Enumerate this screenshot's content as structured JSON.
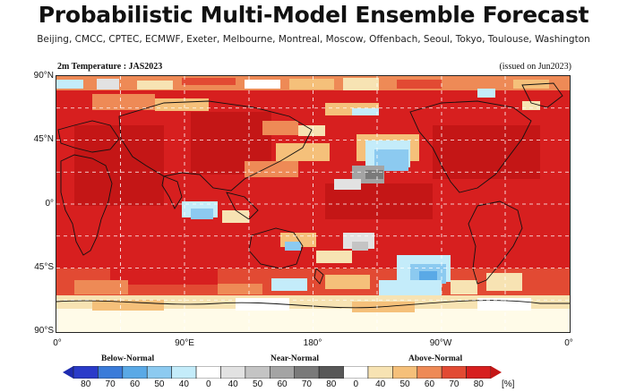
{
  "header": {
    "title": "Probabilistic Multi-Model Ensemble Forecast",
    "subtitle": "Beijing, CMCC, CPTEC, ECMWF, Exeter, Melbourne, Montreal, Moscow, Offenbach, Seoul, Tokyo, Toulouse, Washington"
  },
  "map": {
    "variable_label": "2m Temperature : JAS2023",
    "issued_label": "(issued on Jun2023)",
    "lat_ticks": [
      "90°N",
      "45°N",
      "0°",
      "45°S",
      "90°S"
    ],
    "lon_ticks": [
      "0°",
      "90°E",
      "180°",
      "90°W",
      "0°"
    ]
  },
  "legend": {
    "categories": [
      "Below-Normal",
      "Near-Normal",
      "Above-Normal"
    ],
    "below_values": [
      "80",
      "70",
      "60",
      "50",
      "40"
    ],
    "near_values": [
      "0",
      "40",
      "50",
      "60",
      "70",
      "80"
    ],
    "above_values": [
      "0",
      "40",
      "50",
      "60",
      "70",
      "80"
    ],
    "unit": "[%]",
    "below_colors": [
      "#2a3bc9",
      "#3a7bd9",
      "#5aa9e6",
      "#8ccaf0",
      "#c4ecfa"
    ],
    "near_colors": [
      "#ffffff",
      "#e2e2e2",
      "#c4c4c4",
      "#a4a4a4",
      "#7a7a7a",
      "#585858"
    ],
    "above_colors": [
      "#ffffff",
      "#f7e3b3",
      "#f5c07a",
      "#ee8a56",
      "#e24a33",
      "#d71f1f"
    ]
  }
}
